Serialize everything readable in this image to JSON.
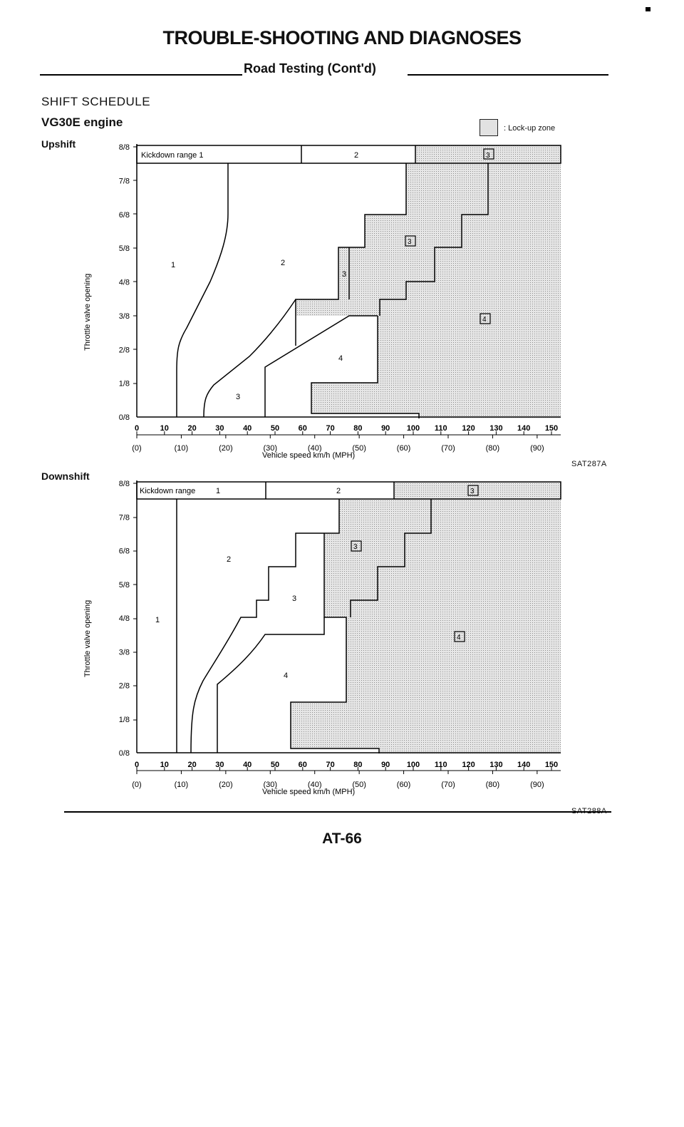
{
  "header": {
    "title": "TROUBLE-SHOOTING AND DIAGNOSES",
    "subtitle": "Road Testing (Cont'd)"
  },
  "section": {
    "title": "SHIFT SCHEDULE",
    "engine": "VG30E engine",
    "legend": ": Lock-up zone"
  },
  "charts": {
    "upshift": {
      "label": "Upshift",
      "figure_code": "SAT287A",
      "band_kickdown": "Kickdown range  1",
      "band_2": "2",
      "band_3": "3",
      "zone_labels": [
        "1",
        "2",
        "3",
        "4",
        "3",
        "3",
        "4"
      ],
      "xlabel": "Vehicle speed  km/h (MPH)",
      "ylabel": "Throttle valve opening"
    },
    "downshift": {
      "label": "Downshift",
      "figure_code": "SAT288A",
      "band_kickdown": "Kickdown range",
      "band_1": "1",
      "band_2": "2",
      "band_3": "3",
      "zone_labels": [
        "1",
        "2",
        "3",
        "4",
        "3",
        "4"
      ],
      "xlabel": "Vehicle speed  km/h (MPH)",
      "ylabel": "Throttle valve opening"
    }
  },
  "axes": {
    "y_ticks": [
      "0/8",
      "1/8",
      "2/8",
      "3/8",
      "4/8",
      "5/8",
      "6/8",
      "7/8",
      "8/8"
    ],
    "x_kmh": [
      "0",
      "10",
      "20",
      "30",
      "40",
      "50",
      "60",
      "70",
      "80",
      "90",
      "100",
      "110",
      "120",
      "130",
      "140",
      "150"
    ],
    "x_mph": [
      "(0)",
      "(10)",
      "(20)",
      "(30)",
      "(40)",
      "(50)",
      "(60)",
      "(70)",
      "(80)",
      "(90)"
    ]
  },
  "footer": {
    "page_number": "AT-66"
  }
}
